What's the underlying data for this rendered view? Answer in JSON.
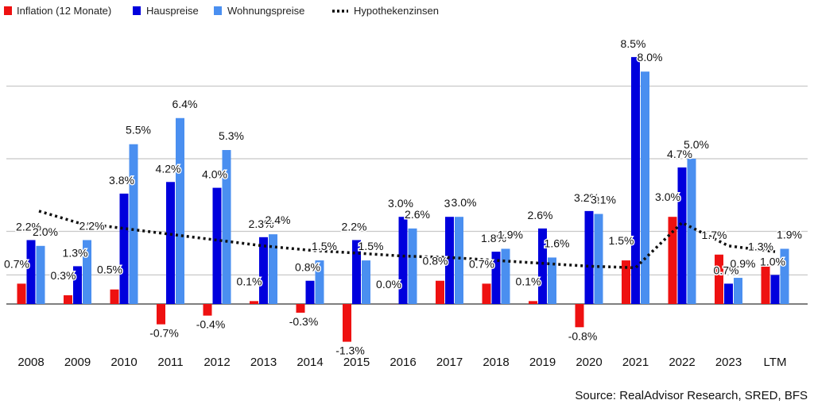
{
  "chart_data": {
    "type": "bar",
    "title": "",
    "xlabel": "",
    "ylabel": "",
    "ylim": [
      -1.6,
      9.0
    ],
    "grid": true,
    "legend_position": "top-left",
    "categories": [
      "2008",
      "2009",
      "2010",
      "2011",
      "2012",
      "2013",
      "2014",
      "2015",
      "2016",
      "2017",
      "2018",
      "2019",
      "2020",
      "2021",
      "2022",
      "2023",
      "LTM"
    ],
    "series": [
      {
        "name": "Inflation (12 Monate)",
        "color": "#ee1111",
        "type": "bar",
        "values": [
          0.7,
          0.3,
          0.5,
          -0.7,
          -0.4,
          0.1,
          -0.3,
          -1.3,
          0.0,
          0.8,
          0.7,
          0.1,
          -0.8,
          1.5,
          3.0,
          1.7,
          1.3
        ],
        "labels": [
          "0.7%",
          "0.3%",
          "0.5%",
          "-0.7%",
          "-0.4%",
          "0.1%",
          "-0.3%",
          "-1.3%",
          "0.0%",
          "0.8%",
          "0.7%",
          "0.1%",
          "-0.8%",
          "1.5%",
          "3.0%",
          "1.7%",
          "1.3%"
        ]
      },
      {
        "name": "Hauspreise",
        "color": "#0000dd",
        "type": "bar",
        "values": [
          2.2,
          1.3,
          3.8,
          4.2,
          4.0,
          2.3,
          0.8,
          2.2,
          3.0,
          3.0,
          1.8,
          2.6,
          3.2,
          8.5,
          4.7,
          0.7,
          1.0
        ],
        "labels": [
          "2.2%",
          "1.3%",
          "3.8%",
          "4.2%",
          "4.0%",
          "2.3%",
          "0.8%",
          "2.2%",
          "3.0%",
          "3",
          "1.8%",
          "2.6%",
          "3.2%",
          "8.5%",
          "4.7%",
          "0.7%",
          "1.0%"
        ]
      },
      {
        "name": "Wohnungspreise",
        "color": "#4a8ff0",
        "type": "bar",
        "values": [
          2.0,
          2.2,
          5.5,
          6.4,
          5.3,
          2.4,
          1.5,
          1.5,
          2.6,
          3.0,
          1.9,
          1.6,
          3.1,
          8.0,
          5.0,
          0.9,
          1.9
        ],
        "labels": [
          "2.0%",
          "2.2%",
          "5.5%",
          "6.4%",
          "5.3%",
          "2.4%",
          "1.5%",
          "1.5%",
          "2.6%",
          "3.0%",
          "1.9%",
          "1.6%",
          "3.1%",
          "8.0%",
          "5.0%",
          "0.9%",
          "1.9%"
        ]
      },
      {
        "name": "Hypothekenzinsen",
        "color": "#000000",
        "type": "line",
        "values": [
          3.2,
          2.8,
          2.6,
          2.4,
          2.2,
          2.0,
          1.85,
          1.75,
          1.65,
          1.6,
          1.5,
          1.4,
          1.3,
          1.25,
          2.8,
          2.0,
          1.8
        ]
      }
    ],
    "source": "Source: RealAdvisor Research, SRED, BFS"
  }
}
